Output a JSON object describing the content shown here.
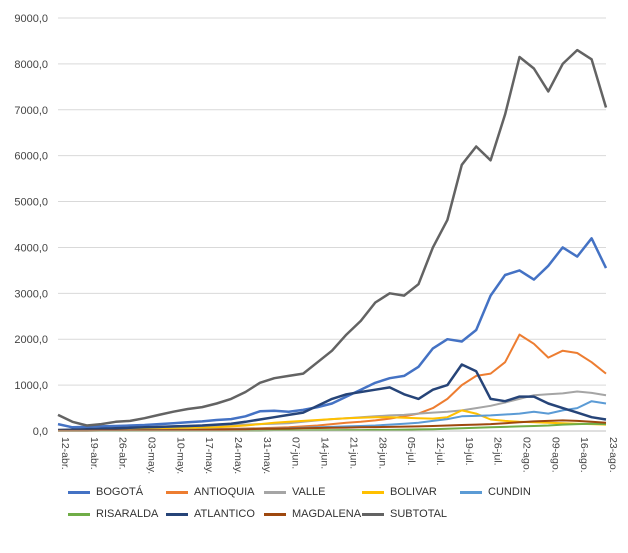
{
  "chart_data": {
    "type": "line",
    "title": "",
    "xlabel": "",
    "ylabel": "",
    "ylim": [
      0,
      9000
    ],
    "yticks": [
      "0,0",
      "1000,0",
      "2000,0",
      "3000,0",
      "4000,0",
      "5000,0",
      "6000,0",
      "7000,0",
      "8000,0",
      "9000,0"
    ],
    "x_tick_labels": [
      "12-abr.",
      "19-abr.",
      "26-abr.",
      "03-may.",
      "10-may.",
      "17-may.",
      "24-may.",
      "31-may.",
      "07-jun.",
      "14-jun.",
      "21-jun.",
      "28-jun.",
      "05-jul.",
      "12-jul.",
      "19-jul.",
      "26-jul.",
      "02-ago.",
      "09-ago.",
      "16-ago.",
      "23-ago."
    ],
    "grid": "horizontal",
    "legend_position": "bottom",
    "x": [
      "12-abr.",
      "15-abr.",
      "19-abr.",
      "22-abr.",
      "26-abr.",
      "29-abr.",
      "03-may.",
      "06-may.",
      "10-may.",
      "13-may.",
      "17-may.",
      "20-may.",
      "24-may.",
      "27-may.",
      "31-may.",
      "03-jun.",
      "07-jun.",
      "10-jun.",
      "14-jun.",
      "17-jun.",
      "21-jun.",
      "24-jun.",
      "28-jun.",
      "01-jul.",
      "05-jul.",
      "08-jul.",
      "12-jul.",
      "15-jul.",
      "19-jul.",
      "22-jul.",
      "26-jul.",
      "29-jul.",
      "02-ago.",
      "05-ago.",
      "09-ago.",
      "12-ago.",
      "16-ago.",
      "19-ago.",
      "23-ago."
    ],
    "series": [
      {
        "name": "BOGOTÁ",
        "color": "#4472c4",
        "width": 2.5,
        "values": [
          150,
          80,
          90,
          100,
          110,
          120,
          130,
          150,
          170,
          190,
          210,
          240,
          260,
          320,
          430,
          440,
          420,
          460,
          520,
          600,
          750,
          900,
          1050,
          1150,
          1200,
          1400,
          1800,
          2000,
          1950,
          2200,
          2950,
          3400,
          3500,
          3300,
          3600,
          4000,
          3800,
          4200,
          3550
        ]
      },
      {
        "name": "ANTIOQUIA",
        "color": "#ed7d31",
        "width": 2,
        "values": [
          20,
          20,
          20,
          25,
          25,
          30,
          30,
          35,
          35,
          40,
          40,
          45,
          50,
          55,
          60,
          70,
          80,
          100,
          120,
          150,
          180,
          200,
          230,
          270,
          320,
          380,
          500,
          700,
          1000,
          1200,
          1250,
          1500,
          2100,
          1900,
          1600,
          1750,
          1700,
          1500,
          1250
        ]
      },
      {
        "name": "VALLE",
        "color": "#a5a5a5",
        "width": 2,
        "values": [
          30,
          30,
          35,
          40,
          45,
          50,
          60,
          70,
          80,
          90,
          100,
          120,
          130,
          140,
          150,
          160,
          170,
          200,
          230,
          260,
          280,
          300,
          320,
          340,
          350,
          380,
          400,
          420,
          450,
          500,
          550,
          620,
          700,
          780,
          800,
          820,
          860,
          830,
          780
        ]
      },
      {
        "name": "BOLIVAR",
        "color": "#ffc000",
        "width": 2,
        "values": [
          10,
          10,
          15,
          20,
          25,
          30,
          35,
          40,
          50,
          60,
          70,
          80,
          100,
          120,
          150,
          180,
          200,
          220,
          240,
          260,
          280,
          290,
          300,
          300,
          290,
          280,
          270,
          300,
          450,
          380,
          250,
          220,
          200,
          190,
          180,
          170,
          160,
          150,
          140
        ]
      },
      {
        "name": "CUNDIN",
        "color": "#5b9bd5",
        "width": 2,
        "values": [
          10,
          10,
          10,
          10,
          15,
          15,
          20,
          20,
          25,
          25,
          30,
          35,
          40,
          45,
          50,
          55,
          60,
          70,
          80,
          90,
          100,
          110,
          120,
          140,
          160,
          180,
          220,
          260,
          320,
          330,
          340,
          360,
          380,
          420,
          380,
          450,
          500,
          650,
          600
        ]
      },
      {
        "name": "RISARALDA",
        "color": "#70ad47",
        "width": 2,
        "values": [
          5,
          5,
          5,
          5,
          5,
          5,
          5,
          5,
          5,
          5,
          5,
          5,
          5,
          5,
          5,
          10,
          10,
          10,
          15,
          15,
          20,
          20,
          25,
          25,
          30,
          35,
          40,
          50,
          60,
          70,
          80,
          90,
          100,
          110,
          120,
          140,
          150,
          160,
          150
        ]
      },
      {
        "name": "ATLANTICO",
        "color": "#264478",
        "width": 2.5,
        "values": [
          20,
          30,
          40,
          50,
          60,
          70,
          80,
          90,
          100,
          110,
          120,
          140,
          160,
          200,
          250,
          300,
          350,
          400,
          550,
          700,
          800,
          850,
          900,
          950,
          800,
          700,
          900,
          1000,
          1450,
          1300,
          700,
          650,
          750,
          750,
          600,
          500,
          400,
          300,
          250
        ]
      },
      {
        "name": "MAGDALENA",
        "color": "#9e480e",
        "width": 2,
        "values": [
          5,
          5,
          5,
          10,
          10,
          10,
          15,
          15,
          20,
          20,
          25,
          30,
          35,
          40,
          45,
          50,
          55,
          60,
          65,
          70,
          75,
          80,
          85,
          90,
          95,
          100,
          110,
          120,
          130,
          140,
          150,
          170,
          190,
          210,
          220,
          230,
          220,
          200,
          180
        ]
      },
      {
        "name": "SUBTOTAL",
        "color": "#636363",
        "width": 2.5,
        "values": [
          350,
          200,
          120,
          150,
          200,
          220,
          280,
          350,
          420,
          480,
          520,
          600,
          700,
          850,
          1050,
          1150,
          1200,
          1250,
          1500,
          1750,
          2100,
          2400,
          2800,
          3000,
          2950,
          3200,
          4000,
          4600,
          5800,
          6200,
          5900,
          6900,
          8150,
          7900,
          7400,
          8000,
          8300,
          8100,
          7050
        ]
      }
    ]
  }
}
